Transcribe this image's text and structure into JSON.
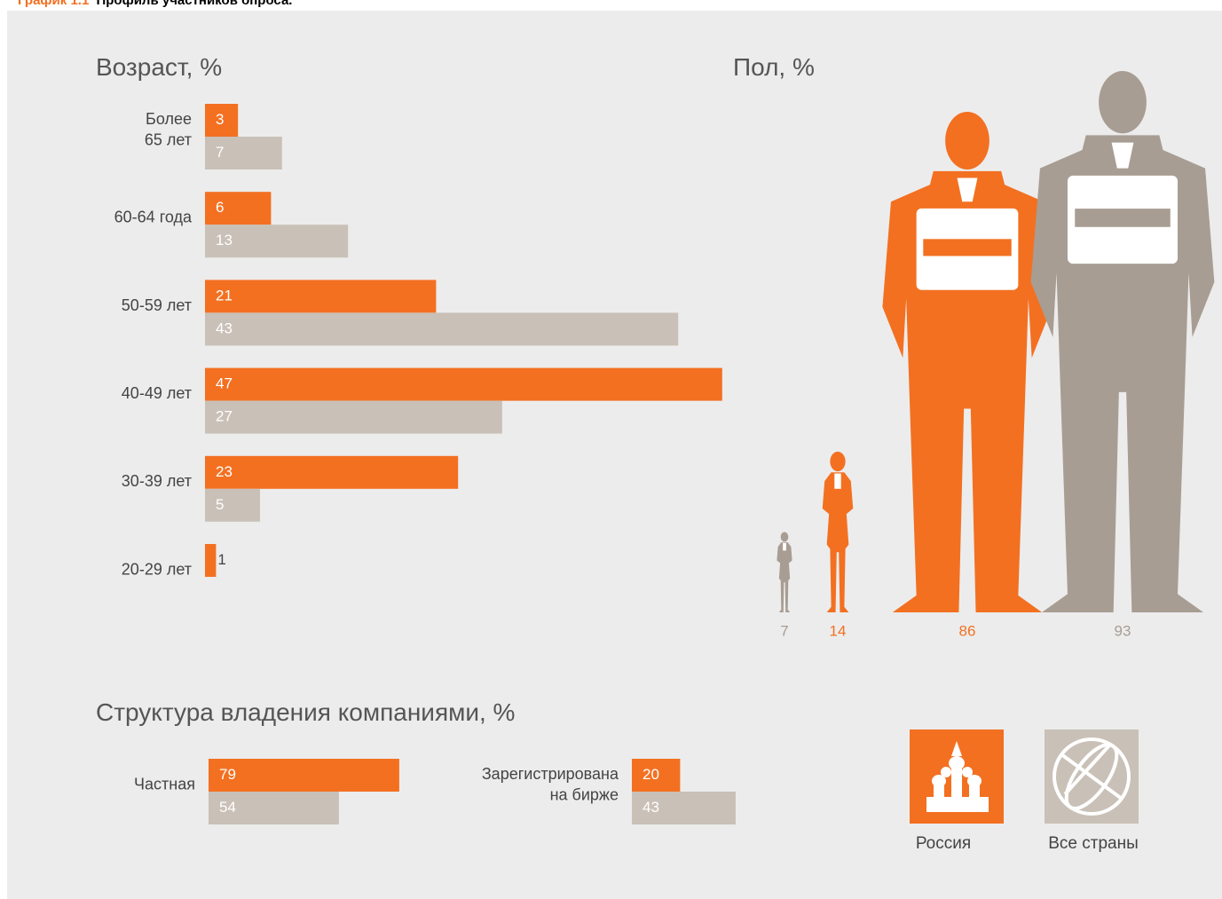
{
  "header": {
    "label": "График 1.1",
    "title": "Профиль участников опроса."
  },
  "chart_data": [
    {
      "type": "bar",
      "orientation": "horizontal",
      "title": "Возраст, %",
      "categories": [
        "Более\n65 лет",
        "60-64 года",
        "50-59 лет",
        "40-49 лет",
        "30-39 лет",
        "20-29 лет"
      ],
      "series": [
        {
          "name": "Россия",
          "color": "#f37021",
          "values": [
            3,
            6,
            21,
            47,
            23,
            1
          ]
        },
        {
          "name": "Все страны",
          "color": "#c9c0b7",
          "values": [
            7,
            13,
            43,
            27,
            5,
            null
          ]
        }
      ]
    },
    {
      "type": "pictogram",
      "title": "Пол, %",
      "series": [
        {
          "color": "#f37021",
          "values": [
            14,
            86
          ]
        },
        {
          "color": "#a89d93",
          "values": [
            7,
            93
          ]
        }
      ]
    },
    {
      "type": "bar",
      "orientation": "horizontal",
      "title": "Структура владения компаниями, %",
      "categories": [
        "Частная",
        "Зарегистрирована\nна бирже"
      ],
      "series": [
        {
          "color": "#f37021",
          "values": [
            79,
            20
          ]
        },
        {
          "color": "#c9c0b7",
          "values": [
            54,
            43
          ]
        }
      ]
    }
  ]
}
